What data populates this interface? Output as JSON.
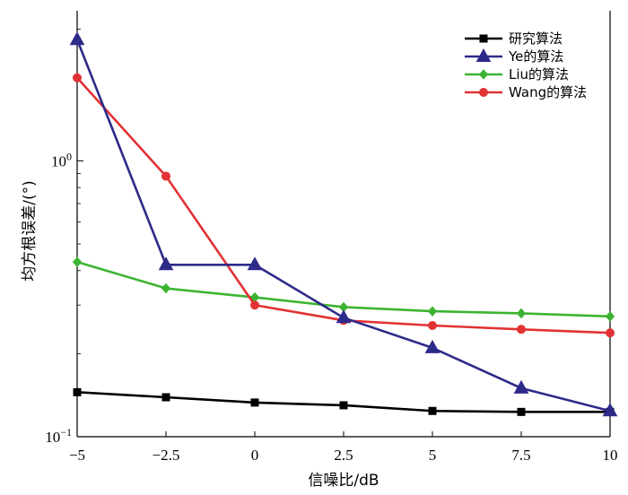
{
  "chart_data": {
    "type": "line",
    "xlabel": "信噪比/dB",
    "ylabel": "均方根误差/(°)",
    "yscale": "log",
    "xlim": [
      -5,
      10
    ],
    "ylim": [
      0.1,
      3.5
    ],
    "x": [
      -5,
      -2.5,
      0,
      2.5,
      5,
      7.5,
      10
    ],
    "x_tick_labels": [
      "−5",
      "−2.5",
      "0",
      "2.5",
      "5",
      "7.5",
      "10"
    ],
    "y_ticks": [
      {
        "value": 0.1,
        "base": "10",
        "exp": "−1"
      },
      {
        "value": 1,
        "base": "10",
        "exp": "0"
      }
    ],
    "grid": false,
    "legend_position": "top-right",
    "series": [
      {
        "name": "研究算法",
        "color": "#000000",
        "marker": "square",
        "values": [
          0.145,
          0.139,
          0.133,
          0.13,
          0.124,
          0.123,
          0.123
        ]
      },
      {
        "name": "Ye的算法",
        "color": "#2e2a8a",
        "marker": "triangle",
        "values": [
          2.75,
          0.42,
          0.42,
          0.27,
          0.21,
          0.15,
          0.124
        ]
      },
      {
        "name": "Liu的算法",
        "color": "#3cb432",
        "marker": "diamond",
        "values": [
          0.43,
          0.345,
          0.32,
          0.295,
          0.285,
          0.28,
          0.273
        ]
      },
      {
        "name": "Wang的算法",
        "color": "#e23234",
        "marker": "circle",
        "values": [
          2.0,
          0.88,
          0.3,
          0.264,
          0.253,
          0.245,
          0.238
        ]
      }
    ]
  }
}
